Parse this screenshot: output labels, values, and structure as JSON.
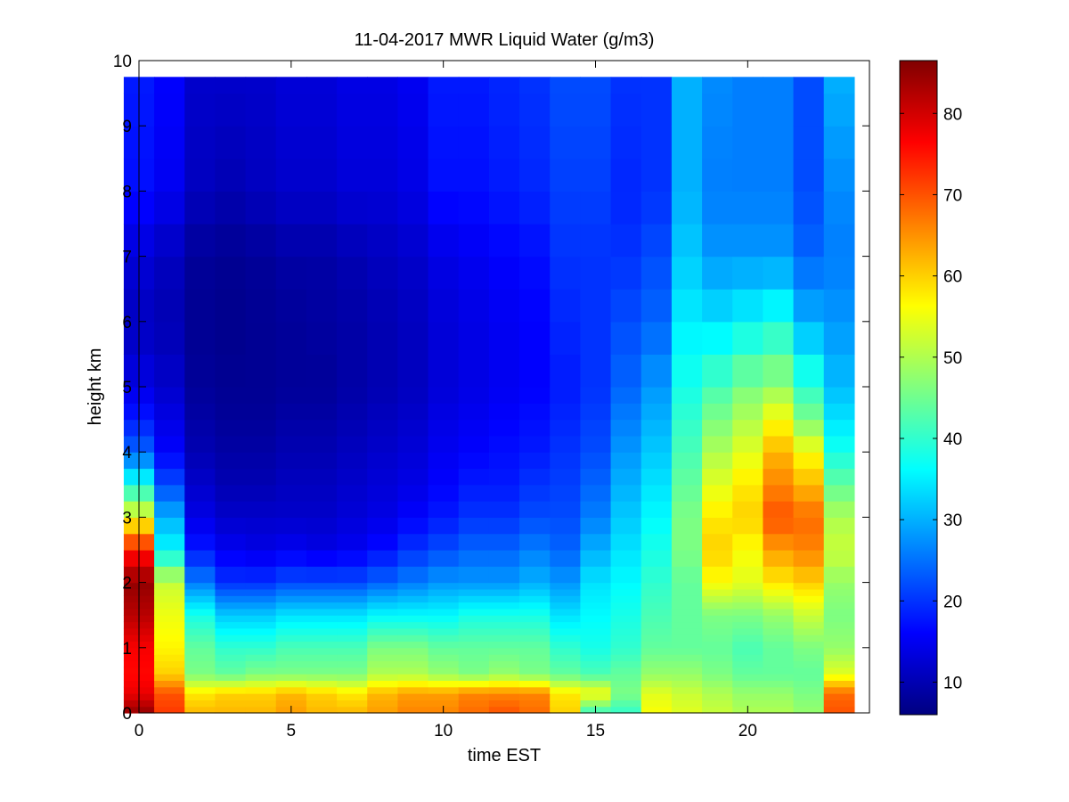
{
  "chart_data": {
    "type": "heatmap",
    "title": "11-04-2017 MWR Liquid Water (g/m3)",
    "xlabel": "time EST",
    "ylabel": "height km",
    "xlim": [
      0,
      24
    ],
    "ylim": [
      0,
      10
    ],
    "xticks": [
      "0",
      "5",
      "10",
      "15",
      "20"
    ],
    "yticks": [
      "0",
      "1",
      "2",
      "3",
      "4",
      "5",
      "6",
      "7",
      "8",
      "9",
      "10"
    ],
    "colorbar": {
      "colormap": "jet",
      "range": [
        6,
        86.5
      ],
      "ticks": [
        "10",
        "20",
        "30",
        "40",
        "50",
        "60",
        "70",
        "80"
      ]
    },
    "grid": false,
    "time_columns": [
      0,
      1,
      2,
      3,
      4,
      5,
      6,
      7,
      8,
      9,
      10,
      11,
      12,
      13,
      14,
      15,
      16,
      17,
      18,
      19,
      20,
      21,
      22,
      23
    ],
    "height_levels_km": [
      0,
      0.1,
      0.2,
      0.3,
      0.4,
      0.5,
      0.6,
      0.7,
      0.8,
      0.9,
      1.0,
      1.1,
      1.2,
      1.3,
      1.4,
      1.5,
      1.6,
      1.7,
      1.8,
      1.9,
      2.0,
      2.25,
      2.5,
      2.75,
      3.0,
      3.25,
      3.5,
      3.75,
      4.0,
      4.25,
      4.5,
      4.75,
      5.0,
      5.5,
      6.0,
      6.5,
      7.0,
      7.5,
      8.0,
      8.5,
      9.0,
      9.5,
      9.75
    ],
    "profiles": [
      {
        "h": [
          0,
          0.3,
          0.6,
          1.0,
          1.5,
          2.0,
          2.5,
          3.0,
          3.5,
          4.0,
          4.5,
          5.0,
          6.0,
          7.0,
          8.0,
          9.75
        ],
        "v": [
          85,
          78,
          76,
          77,
          82,
          85,
          75,
          55,
          38,
          24,
          18,
          14,
          11,
          13,
          17,
          18
        ]
      },
      {
        "h": [
          0,
          0.3,
          0.6,
          1.0,
          1.5,
          2.0,
          2.5,
          3.0,
          3.5,
          4.0,
          4.5,
          5.0,
          6.0,
          7.0,
          8.0,
          9.75
        ],
        "v": [
          72,
          70,
          60,
          57,
          55,
          52,
          36,
          30,
          22,
          16,
          14,
          12,
          10,
          11,
          15,
          16
        ]
      },
      {
        "h": [
          0,
          0.3,
          0.6,
          1.0,
          1.5,
          2.0,
          2.5,
          3.0,
          3.5,
          4.0,
          4.5,
          5.0,
          6.0,
          7.0,
          8.0,
          9.75
        ],
        "v": [
          62,
          58,
          46,
          44,
          38,
          26,
          18,
          14,
          12,
          10,
          9,
          8,
          7.5,
          8,
          11,
          12
        ]
      },
      {
        "h": [
          0,
          0.3,
          0.6,
          1.0,
          1.5,
          2.0,
          2.5,
          3.0,
          3.5,
          4.0,
          4.5,
          5.0,
          6.0,
          7.0,
          8.0,
          9.75
        ],
        "v": [
          62,
          60,
          44,
          40,
          32,
          20,
          15,
          12,
          10,
          9,
          8,
          7.5,
          7,
          7.5,
          10,
          12
        ]
      },
      {
        "h": [
          0,
          0.3,
          0.6,
          1.0,
          1.5,
          2.0,
          2.5,
          3.0,
          3.5,
          4.0,
          4.5,
          5.0,
          6.0,
          7.0,
          8.0,
          9.75
        ],
        "v": [
          62,
          60,
          46,
          40,
          32,
          20,
          14,
          12,
          10,
          9,
          8,
          7.5,
          7.5,
          8,
          11,
          12
        ]
      },
      {
        "h": [
          0,
          0.3,
          0.6,
          1.0,
          1.5,
          2.0,
          2.5,
          3.0,
          3.5,
          4.0,
          4.5,
          5.0,
          6.0,
          7.0,
          8.0,
          9.75
        ],
        "v": [
          64,
          62,
          46,
          42,
          34,
          22,
          15,
          12,
          11,
          10,
          9,
          8,
          8,
          9,
          12,
          13
        ]
      },
      {
        "h": [
          0,
          0.3,
          0.6,
          1.0,
          1.5,
          2.0,
          2.5,
          3.0,
          3.5,
          4.0,
          4.5,
          5.0,
          6.0,
          7.0,
          8.0,
          9.75
        ],
        "v": [
          62,
          60,
          46,
          42,
          34,
          22,
          14,
          12,
          11,
          10,
          9,
          8,
          8.5,
          9,
          12,
          13
        ]
      },
      {
        "h": [
          0,
          0.3,
          0.6,
          1.0,
          1.5,
          2.0,
          2.5,
          3.0,
          3.5,
          4.0,
          4.5,
          5.0,
          6.0,
          7.0,
          8.0,
          9.75
        ],
        "v": [
          62,
          58,
          46,
          42,
          34,
          22,
          15,
          13,
          12,
          11,
          10,
          9,
          9,
          10,
          13,
          14
        ]
      },
      {
        "h": [
          0,
          0.3,
          0.6,
          1.0,
          1.5,
          2.0,
          2.5,
          3.0,
          3.5,
          4.0,
          4.5,
          5.0,
          6.0,
          7.0,
          8.0,
          9.75
        ],
        "v": [
          64,
          62,
          50,
          46,
          36,
          24,
          17,
          14,
          13,
          12,
          11,
          10,
          10,
          11,
          13,
          14
        ]
      },
      {
        "h": [
          0,
          0.3,
          0.6,
          1.0,
          1.5,
          2.0,
          2.5,
          3.0,
          3.5,
          4.0,
          4.5,
          5.0,
          6.0,
          7.0,
          8.0,
          9.75
        ],
        "v": [
          66,
          64,
          50,
          46,
          36,
          26,
          20,
          16,
          14,
          13,
          12,
          11,
          11,
          12,
          14,
          15
        ]
      },
      {
        "h": [
          0,
          0.3,
          0.6,
          1.0,
          1.5,
          2.0,
          2.5,
          3.0,
          3.5,
          4.0,
          4.5,
          5.0,
          6.0,
          7.0,
          8.0,
          9.75
        ],
        "v": [
          66,
          64,
          48,
          44,
          36,
          28,
          22,
          18,
          16,
          15,
          14,
          13,
          13,
          14,
          17,
          18
        ]
      },
      {
        "h": [
          0,
          0.3,
          0.6,
          1.0,
          1.5,
          2.0,
          2.5,
          3.0,
          3.5,
          4.0,
          4.5,
          5.0,
          6.0,
          7.0,
          8.0,
          9.75
        ],
        "v": [
          68,
          66,
          46,
          44,
          38,
          28,
          24,
          20,
          18,
          16,
          15,
          14,
          14,
          15,
          17,
          18
        ]
      },
      {
        "h": [
          0,
          0.3,
          0.6,
          1.0,
          1.5,
          2.0,
          2.5,
          3.0,
          3.5,
          4.0,
          4.5,
          5.0,
          6.0,
          7.0,
          8.0,
          9.75
        ],
        "v": [
          70,
          66,
          48,
          44,
          38,
          28,
          24,
          20,
          18,
          17,
          16,
          15,
          15,
          16,
          18,
          19
        ]
      },
      {
        "h": [
          0,
          0.3,
          0.6,
          1.0,
          1.5,
          2.0,
          2.5,
          3.0,
          3.5,
          4.0,
          4.5,
          5.0,
          6.0,
          7.0,
          8.0,
          9.75
        ],
        "v": [
          68,
          66,
          46,
          44,
          38,
          30,
          26,
          22,
          20,
          18,
          17,
          16,
          16,
          17,
          19,
          20
        ]
      },
      {
        "h": [
          0,
          0.3,
          0.6,
          1.0,
          1.5,
          2.0,
          2.5,
          3.0,
          3.5,
          4.0,
          4.5,
          5.0,
          6.0,
          7.0,
          8.0,
          9.75
        ],
        "v": [
          60,
          58,
          44,
          40,
          34,
          28,
          24,
          22,
          21,
          20,
          19,
          18,
          19,
          20,
          21,
          22
        ]
      },
      {
        "h": [
          0,
          0.3,
          0.6,
          1.0,
          1.5,
          2.0,
          2.5,
          3.0,
          3.5,
          4.0,
          4.5,
          5.0,
          6.0,
          7.0,
          8.0,
          9.75
        ],
        "v": [
          40,
          56,
          42,
          38,
          36,
          34,
          30,
          26,
          24,
          22,
          21,
          20,
          20,
          20,
          21,
          22
        ]
      },
      {
        "h": [
          0,
          0.3,
          0.6,
          1.0,
          1.5,
          2.0,
          2.5,
          3.0,
          3.5,
          4.0,
          4.5,
          5.0,
          6.0,
          7.0,
          8.0,
          9.75
        ],
        "v": [
          40,
          46,
          44,
          40,
          38,
          36,
          34,
          32,
          30,
          28,
          26,
          24,
          22,
          20,
          19,
          20
        ]
      },
      {
        "h": [
          0,
          0.3,
          0.6,
          1.0,
          1.5,
          2.0,
          2.5,
          3.0,
          3.5,
          4.0,
          4.5,
          5.0,
          6.0,
          7.0,
          8.0,
          9.75
        ],
        "v": [
          56,
          54,
          48,
          44,
          42,
          40,
          38,
          36,
          34,
          32,
          30,
          28,
          24,
          22,
          20,
          20
        ]
      },
      {
        "h": [
          0,
          0.3,
          0.6,
          1.0,
          1.5,
          2.0,
          2.5,
          3.0,
          3.5,
          4.0,
          4.5,
          5.0,
          6.0,
          7.0,
          8.0,
          9.75
        ],
        "v": [
          54,
          52,
          48,
          44,
          44,
          44,
          46,
          46,
          44,
          42,
          40,
          38,
          35,
          32,
          30,
          30
        ]
      },
      {
        "h": [
          0,
          0.3,
          0.6,
          1.0,
          1.5,
          2.0,
          2.5,
          3.0,
          3.5,
          4.0,
          4.5,
          5.0,
          6.0,
          7.0,
          8.0,
          9.75
        ],
        "v": [
          52,
          50,
          46,
          44,
          46,
          56,
          60,
          58,
          54,
          50,
          46,
          42,
          34,
          28,
          26,
          27
        ]
      },
      {
        "h": [
          0,
          0.3,
          0.6,
          1.0,
          1.5,
          2.0,
          2.5,
          3.0,
          3.5,
          4.0,
          4.5,
          5.0,
          6.0,
          7.0,
          8.0,
          9.75
        ],
        "v": [
          50,
          48,
          44,
          42,
          46,
          54,
          56,
          60,
          58,
          54,
          50,
          46,
          36,
          28,
          26,
          26
        ]
      },
      {
        "h": [
          0,
          0.3,
          0.6,
          1.0,
          1.5,
          2.0,
          2.5,
          3.0,
          3.5,
          4.0,
          4.5,
          5.0,
          6.0,
          7.0,
          8.0,
          9.75
        ],
        "v": [
          50,
          48,
          44,
          44,
          48,
          58,
          64,
          70,
          66,
          62,
          56,
          48,
          38,
          28,
          26,
          26
        ]
      },
      {
        "h": [
          0,
          0.3,
          0.6,
          1.0,
          1.5,
          2.0,
          2.5,
          3.0,
          3.5,
          4.0,
          4.5,
          5.0,
          6.0,
          7.0,
          8.0,
          9.75
        ],
        "v": [
          48,
          46,
          44,
          46,
          52,
          60,
          66,
          68,
          62,
          56,
          46,
          40,
          30,
          24,
          22,
          22
        ]
      },
      {
        "h": [
          0,
          0.3,
          0.6,
          1.0,
          1.5,
          2.0,
          2.5,
          3.0,
          3.5,
          4.0,
          4.5,
          5.0,
          6.0,
          7.0,
          8.0,
          9.75
        ],
        "v": [
          70,
          68,
          54,
          48,
          46,
          48,
          52,
          50,
          44,
          38,
          34,
          31,
          28,
          26,
          27,
          30
        ]
      }
    ]
  }
}
